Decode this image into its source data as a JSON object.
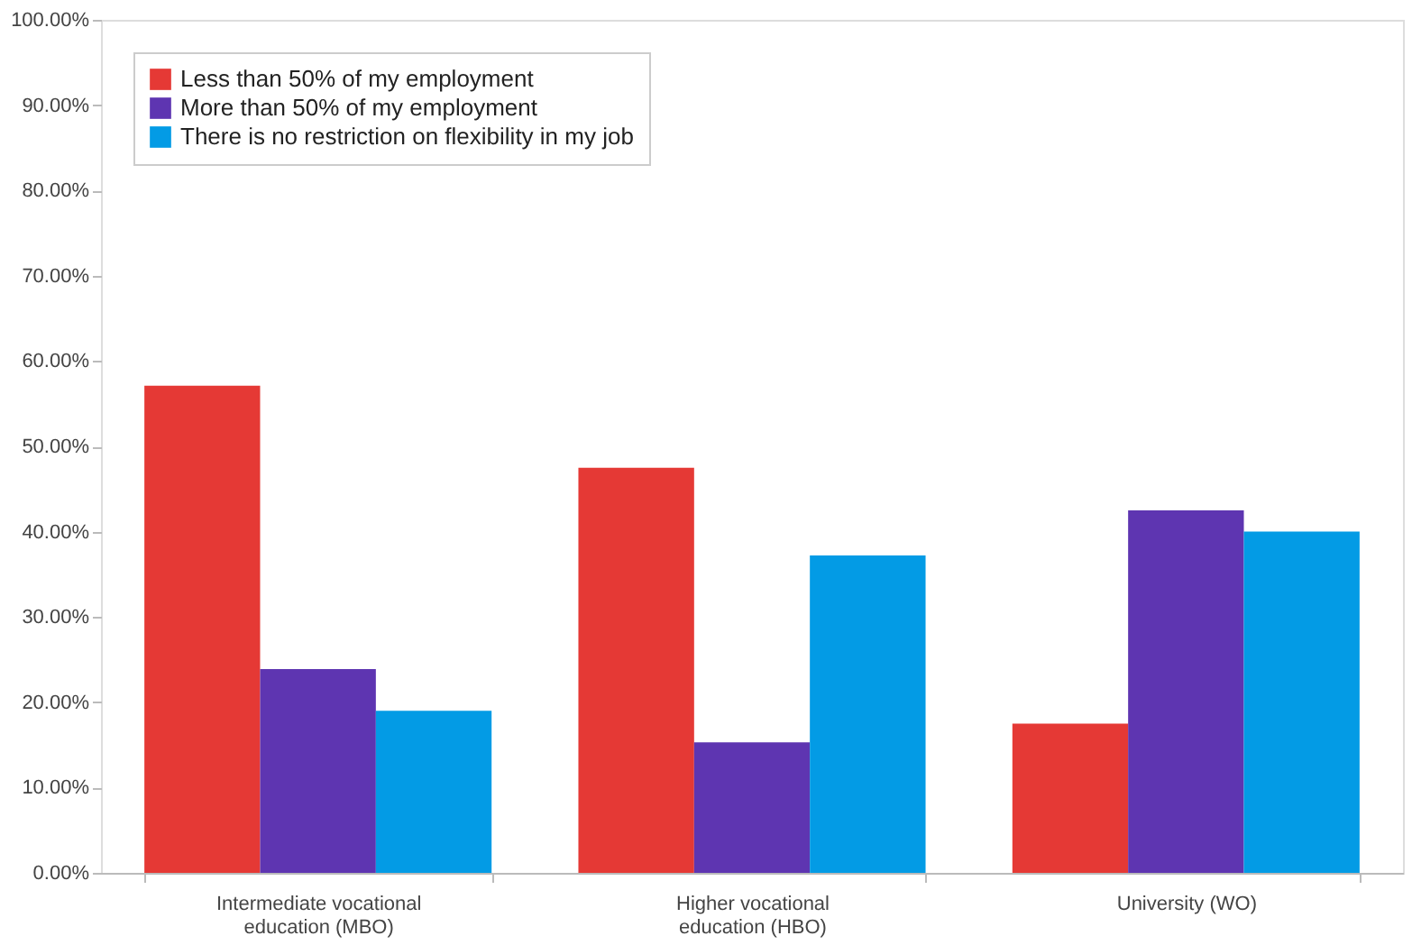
{
  "chart_data": {
    "type": "bar",
    "categories": [
      "Intermediate vocational education (MBO)",
      "Higher vocational education (HBO)",
      "University (WO)"
    ],
    "series": [
      {
        "name": "Less than 50% of my employment",
        "color": "#e53935",
        "values": [
          57.1,
          47.5,
          17.5
        ]
      },
      {
        "name": "More than 50% of my employment",
        "color": "#5e35b1",
        "values": [
          23.9,
          15.3,
          42.5
        ]
      },
      {
        "name": "There is no restriction on flexibility in my job",
        "color": "#039be5",
        "values": [
          19.0,
          37.2,
          40.0
        ]
      }
    ],
    "ylim": [
      0,
      100
    ],
    "yticks": [
      {
        "value": 0,
        "label": "0.00%"
      },
      {
        "value": 10,
        "label": "10.00%"
      },
      {
        "value": 20,
        "label": "20.00%"
      },
      {
        "value": 30,
        "label": "30.00%"
      },
      {
        "value": 40,
        "label": "40.00%"
      },
      {
        "value": 50,
        "label": "50.00%"
      },
      {
        "value": 60,
        "label": "60.00%"
      },
      {
        "value": 70,
        "label": "70.00%"
      },
      {
        "value": 80,
        "label": "80.00%"
      },
      {
        "value": 90,
        "label": "90.00%"
      },
      {
        "value": 100,
        "label": "100.00%"
      }
    ],
    "grid": false,
    "legend": "top left"
  }
}
